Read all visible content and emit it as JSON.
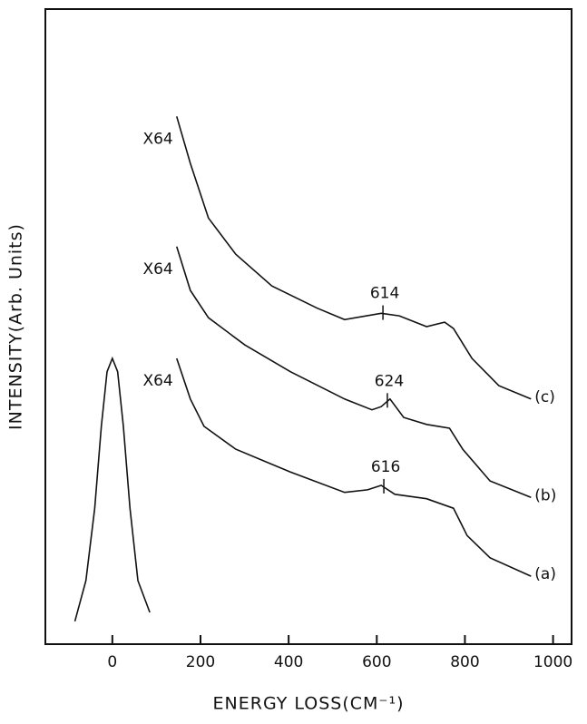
{
  "chart_data": {
    "type": "line",
    "xlabel": "ENERGY LOSS(CM⁻¹)",
    "ylabel": "INTENSITY(Arb. Units)",
    "xlim": [
      -152,
      1042
    ],
    "ylim": [
      0,
      100
    ],
    "xticks": [
      0,
      200,
      400,
      600,
      800,
      1000
    ],
    "series": [
      {
        "color": "#111",
        "x": [
          -85,
          -60,
          -40,
          -25,
          -12,
          0,
          12,
          25,
          40,
          58,
          85
        ],
        "values": [
          3.6,
          10,
          21.4,
          34.3,
          42.9,
          45,
          42.9,
          34.3,
          21.4,
          10,
          5
        ]
      },
      {
        "name": "(a)",
        "color": "#111",
        "factor_label": "X64",
        "peak_label": "616",
        "x": [
          146,
          177,
          208,
          280,
          404,
          527,
          579,
          610,
          641,
          713,
          774,
          805,
          857,
          950
        ],
        "values": [
          45,
          38.6,
          34.3,
          30.7,
          27.1,
          23.9,
          24.3,
          25,
          23.6,
          22.9,
          21.4,
          17.1,
          13.6,
          10.7
        ]
      },
      {
        "name": "(b)",
        "color": "#111",
        "factor_label": "X64",
        "peak_label": "624",
        "x": [
          146,
          177,
          218,
          301,
          404,
          527,
          589,
          610,
          630,
          661,
          713,
          765,
          795,
          857,
          950
        ],
        "values": [
          62.6,
          55.7,
          51.4,
          47.1,
          42.9,
          38.6,
          36.9,
          37.4,
          38.6,
          35.7,
          34.6,
          34,
          30.7,
          25.7,
          23.1
        ]
      },
      {
        "name": "(c)",
        "color": "#111",
        "factor_label": "X64",
        "peak_label": "614",
        "x": [
          146,
          177,
          218,
          280,
          362,
          465,
          527,
          610,
          651,
          713,
          754,
          774,
          816,
          877,
          950
        ],
        "values": [
          83.1,
          75.7,
          67.1,
          61.4,
          56.4,
          52.9,
          51.1,
          52.1,
          51.7,
          50,
          50.7,
          49.7,
          45,
          40.7,
          38.6
        ]
      }
    ]
  }
}
